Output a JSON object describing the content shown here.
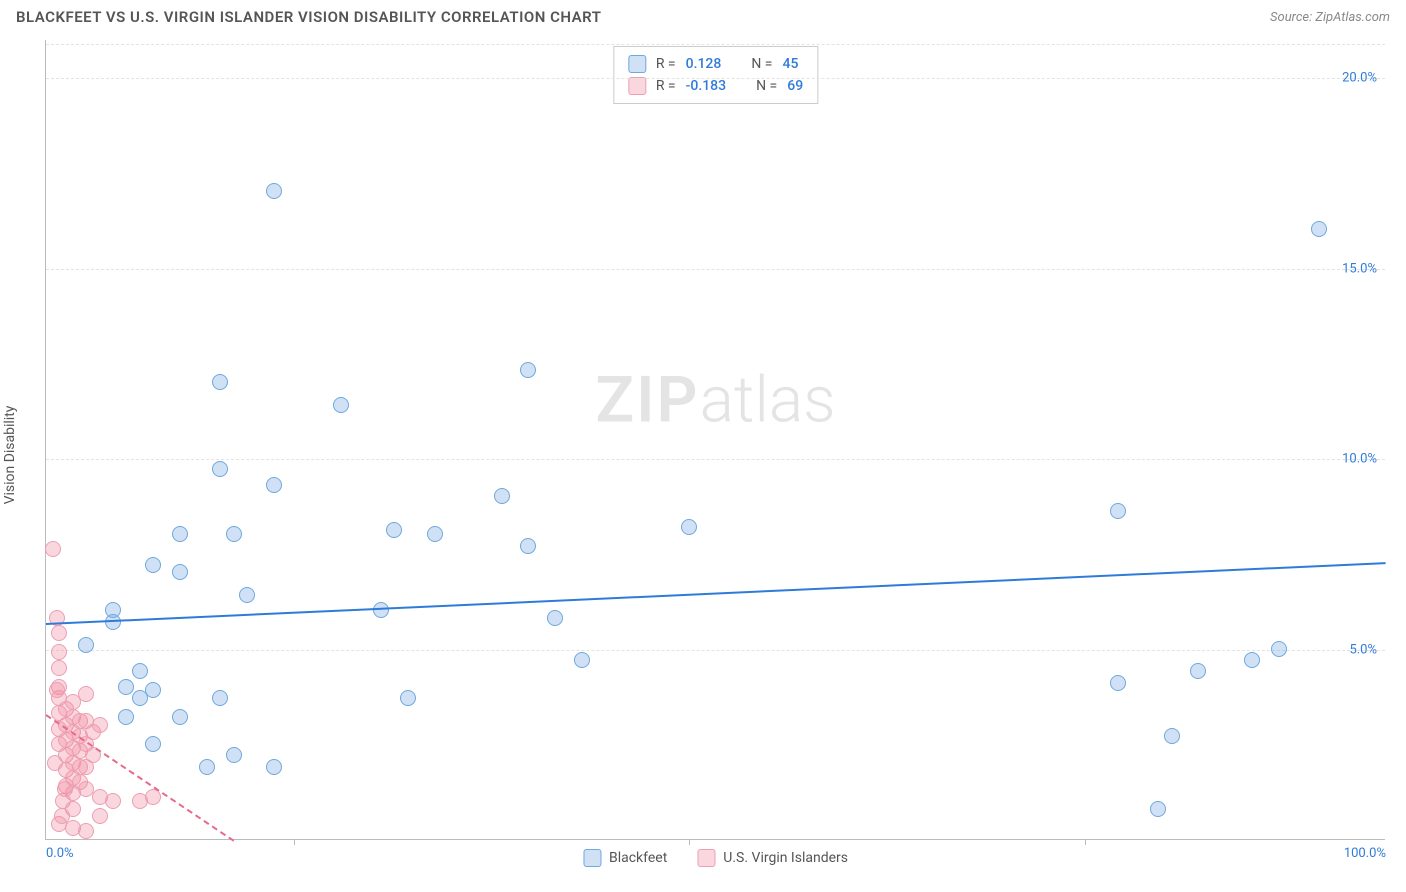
{
  "header": {
    "title": "BLACKFEET VS U.S. VIRGIN ISLANDER VISION DISABILITY CORRELATION CHART",
    "source": "Source: ZipAtlas.com"
  },
  "ylabel": "Vision Disability",
  "watermark": {
    "bold": "ZIP",
    "rest": "atlas"
  },
  "colors": {
    "blue_fill": "rgba(120,170,230,0.35)",
    "blue_stroke": "#6fa8dc",
    "blue_line": "#2f7bd9",
    "blue_text": "#2f7bd9",
    "pink_fill": "rgba(240,140,160,0.35)",
    "pink_stroke": "#ec9fb2",
    "pink_line": "#e86a8a",
    "pink_text": "#e86a8a",
    "grid": "#e3e3e3",
    "axis": "#bbb"
  },
  "axes": {
    "xmin": 0,
    "xmax": 100,
    "ymin": 0,
    "ymax": 21,
    "yticks": [
      {
        "v": 5,
        "label": "5.0%"
      },
      {
        "v": 10,
        "label": "10.0%"
      },
      {
        "v": 15,
        "label": "15.0%"
      },
      {
        "v": 20,
        "label": "20.0%"
      }
    ],
    "xticks_minor": [
      18.5,
      48,
      77.5
    ],
    "xlabels": [
      {
        "v": 0,
        "label": "0.0%"
      },
      {
        "v": 100,
        "label": "100.0%"
      }
    ]
  },
  "marker_radius": 8,
  "series": {
    "blue": {
      "name": "Blackfeet",
      "r_label": "R =",
      "r_value": "0.128",
      "n_label": "N =",
      "n_value": "45",
      "trend": {
        "x1": 0,
        "y1": 5.7,
        "x2": 100,
        "y2": 7.3,
        "dash": false
      },
      "points": [
        [
          17,
          17.0
        ],
        [
          95,
          16.0
        ],
        [
          13,
          12.0
        ],
        [
          22,
          11.4
        ],
        [
          36,
          12.3
        ],
        [
          13,
          9.7
        ],
        [
          17,
          9.3
        ],
        [
          26,
          8.1
        ],
        [
          29,
          8.0
        ],
        [
          34,
          9.0
        ],
        [
          36,
          7.7
        ],
        [
          48,
          8.2
        ],
        [
          10,
          8.0
        ],
        [
          14,
          8.0
        ],
        [
          8,
          7.2
        ],
        [
          10,
          7.0
        ],
        [
          15,
          6.4
        ],
        [
          25,
          6.0
        ],
        [
          38,
          5.8
        ],
        [
          5,
          5.7
        ],
        [
          3,
          5.1
        ],
        [
          7,
          4.4
        ],
        [
          6,
          4.0
        ],
        [
          7,
          3.7
        ],
        [
          8,
          3.9
        ],
        [
          13,
          3.7
        ],
        [
          6,
          3.2
        ],
        [
          10,
          3.2
        ],
        [
          8,
          2.5
        ],
        [
          14,
          2.2
        ],
        [
          27,
          3.7
        ],
        [
          17,
          1.9
        ],
        [
          12,
          1.9
        ],
        [
          40,
          4.7
        ],
        [
          80,
          8.6
        ],
        [
          90,
          4.7
        ],
        [
          80,
          4.1
        ],
        [
          84,
          2.7
        ],
        [
          86,
          4.4
        ],
        [
          92,
          5.0
        ],
        [
          83,
          0.8
        ],
        [
          5,
          6.0
        ]
      ]
    },
    "pink": {
      "name": "U.S. Virgin Islanders",
      "r_label": "R =",
      "r_value": "-0.183",
      "n_label": "N =",
      "n_value": "69",
      "trend": {
        "x1": 0,
        "y1": 3.3,
        "x2": 14,
        "y2": 0,
        "dash": true
      },
      "points": [
        [
          1,
          5.4
        ],
        [
          1,
          4.9
        ],
        [
          1,
          4.5
        ],
        [
          1,
          4.0
        ],
        [
          1,
          3.7
        ],
        [
          1,
          3.3
        ],
        [
          1,
          2.9
        ],
        [
          1,
          2.5
        ],
        [
          1.5,
          3.4
        ],
        [
          1.5,
          3.0
        ],
        [
          1.5,
          2.6
        ],
        [
          1.5,
          2.2
        ],
        [
          1.5,
          1.8
        ],
        [
          1.5,
          1.4
        ],
        [
          2,
          3.6
        ],
        [
          2,
          3.2
        ],
        [
          2,
          2.8
        ],
        [
          2,
          2.4
        ],
        [
          2,
          2.0
        ],
        [
          2,
          1.6
        ],
        [
          2,
          1.2
        ],
        [
          2,
          0.8
        ],
        [
          2.5,
          3.1
        ],
        [
          2.5,
          2.7
        ],
        [
          2.5,
          2.3
        ],
        [
          2.5,
          1.9
        ],
        [
          2.5,
          1.5
        ],
        [
          3,
          3.8
        ],
        [
          3,
          3.1
        ],
        [
          3,
          2.5
        ],
        [
          3,
          1.9
        ],
        [
          3,
          1.3
        ],
        [
          3.5,
          2.8
        ],
        [
          3.5,
          2.2
        ],
        [
          4,
          3.0
        ],
        [
          4,
          1.1
        ],
        [
          4,
          0.6
        ],
        [
          5,
          1.0
        ],
        [
          0.5,
          7.6
        ],
        [
          0.8,
          5.8
        ],
        [
          0.7,
          2.0
        ],
        [
          2,
          0.3
        ],
        [
          3,
          0.2
        ],
        [
          7,
          1.0
        ],
        [
          8,
          1.1
        ],
        [
          1,
          0.4
        ],
        [
          1.2,
          0.6
        ],
        [
          1.3,
          1.0
        ],
        [
          1.4,
          1.3
        ],
        [
          0.8,
          3.9
        ]
      ]
    }
  },
  "bottom_legend": [
    {
      "color": "blue",
      "label": "Blackfeet"
    },
    {
      "color": "pink",
      "label": "U.S. Virgin Islanders"
    }
  ]
}
